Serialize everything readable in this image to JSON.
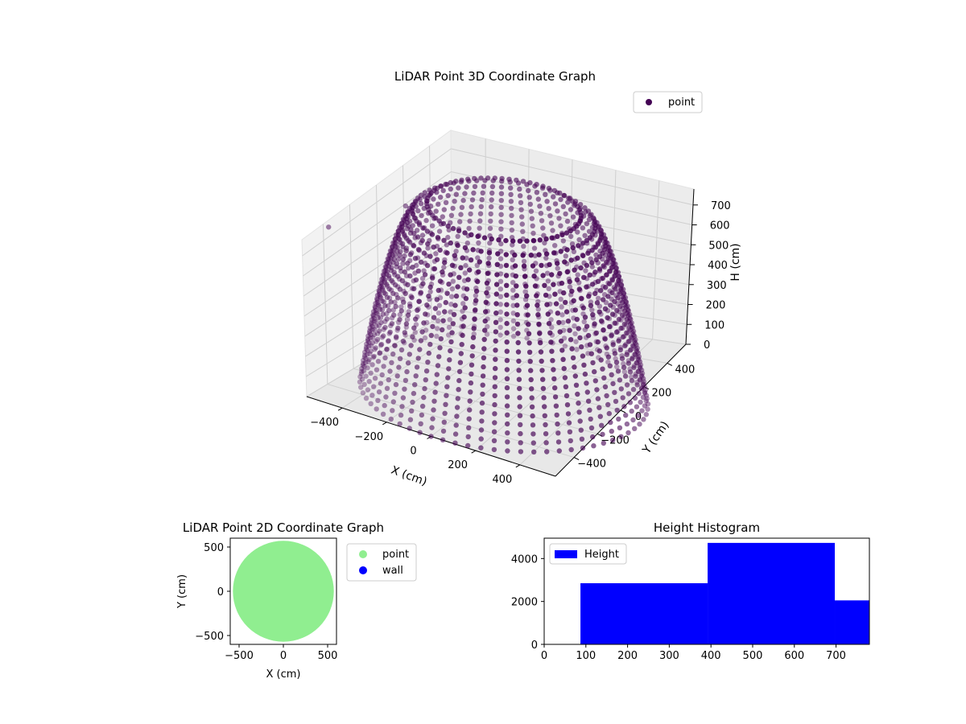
{
  "chart_data": [
    {
      "type": "scatter",
      "projection": "3d",
      "title": "LiDAR Point 3D Coordinate Graph",
      "xlabel": "X (cm)",
      "ylabel": "Y (cm)",
      "zlabel": "H (cm)",
      "x_ticks": [
        -400,
        -200,
        0,
        200,
        400
      ],
      "y_ticks": [
        -400,
        -200,
        0,
        200,
        400
      ],
      "z_ticks": [
        0,
        100,
        200,
        300,
        400,
        500,
        600,
        700
      ],
      "xlim": [
        -560,
        560
      ],
      "ylim": [
        -560,
        560
      ],
      "zlim": [
        780,
        0
      ],
      "z_inverted": true,
      "grid": true,
      "legend": {
        "position": "top-right",
        "entries": [
          {
            "label": "point",
            "color": "#440154"
          }
        ]
      },
      "series": [
        {
          "name": "point",
          "color": "#440154",
          "shape": "bowl: rings of points, radius about 560 cm at H 0 shrinking to about 300 cm at H about 780 cm"
        }
      ]
    },
    {
      "type": "scatter",
      "title": "LiDAR Point 2D Coordinate Graph",
      "xlabel": "X (cm)",
      "ylabel": "Y (cm)",
      "x_ticks": [
        -500,
        0,
        500
      ],
      "y_ticks": [
        -500,
        0,
        500
      ],
      "xlim": [
        -600,
        600
      ],
      "ylim": [
        -600,
        600
      ],
      "legend": {
        "position": "outside-right",
        "entries": [
          {
            "label": "point",
            "color": "#90ee90"
          },
          {
            "label": "wall",
            "color": "#0000ff"
          }
        ]
      },
      "series": [
        {
          "name": "point",
          "color": "#90ee90",
          "shape": "filled disc of radius about 570 cm centered at (0, 0)"
        },
        {
          "name": "wall",
          "color": "#0000ff",
          "points": []
        }
      ]
    },
    {
      "type": "bar",
      "title": "Height Histogram",
      "x_ticks": [
        0,
        100,
        200,
        300,
        400,
        500,
        600,
        700
      ],
      "y_ticks": [
        0,
        2000,
        4000
      ],
      "xlim": [
        0,
        780
      ],
      "ylim": [
        0,
        4950
      ],
      "legend": {
        "position": "top-left",
        "entries": [
          {
            "label": "Height",
            "color": "#0000ff"
          }
        ]
      },
      "series": [
        {
          "name": "Height",
          "color": "#0000ff",
          "bins": [
            {
              "x0": 87,
              "x1": 392,
              "count": 2850
            },
            {
              "x0": 392,
              "x1": 697,
              "count": 4730
            },
            {
              "x0": 697,
              "x1": 780,
              "count": 2050
            }
          ]
        }
      ]
    }
  ]
}
